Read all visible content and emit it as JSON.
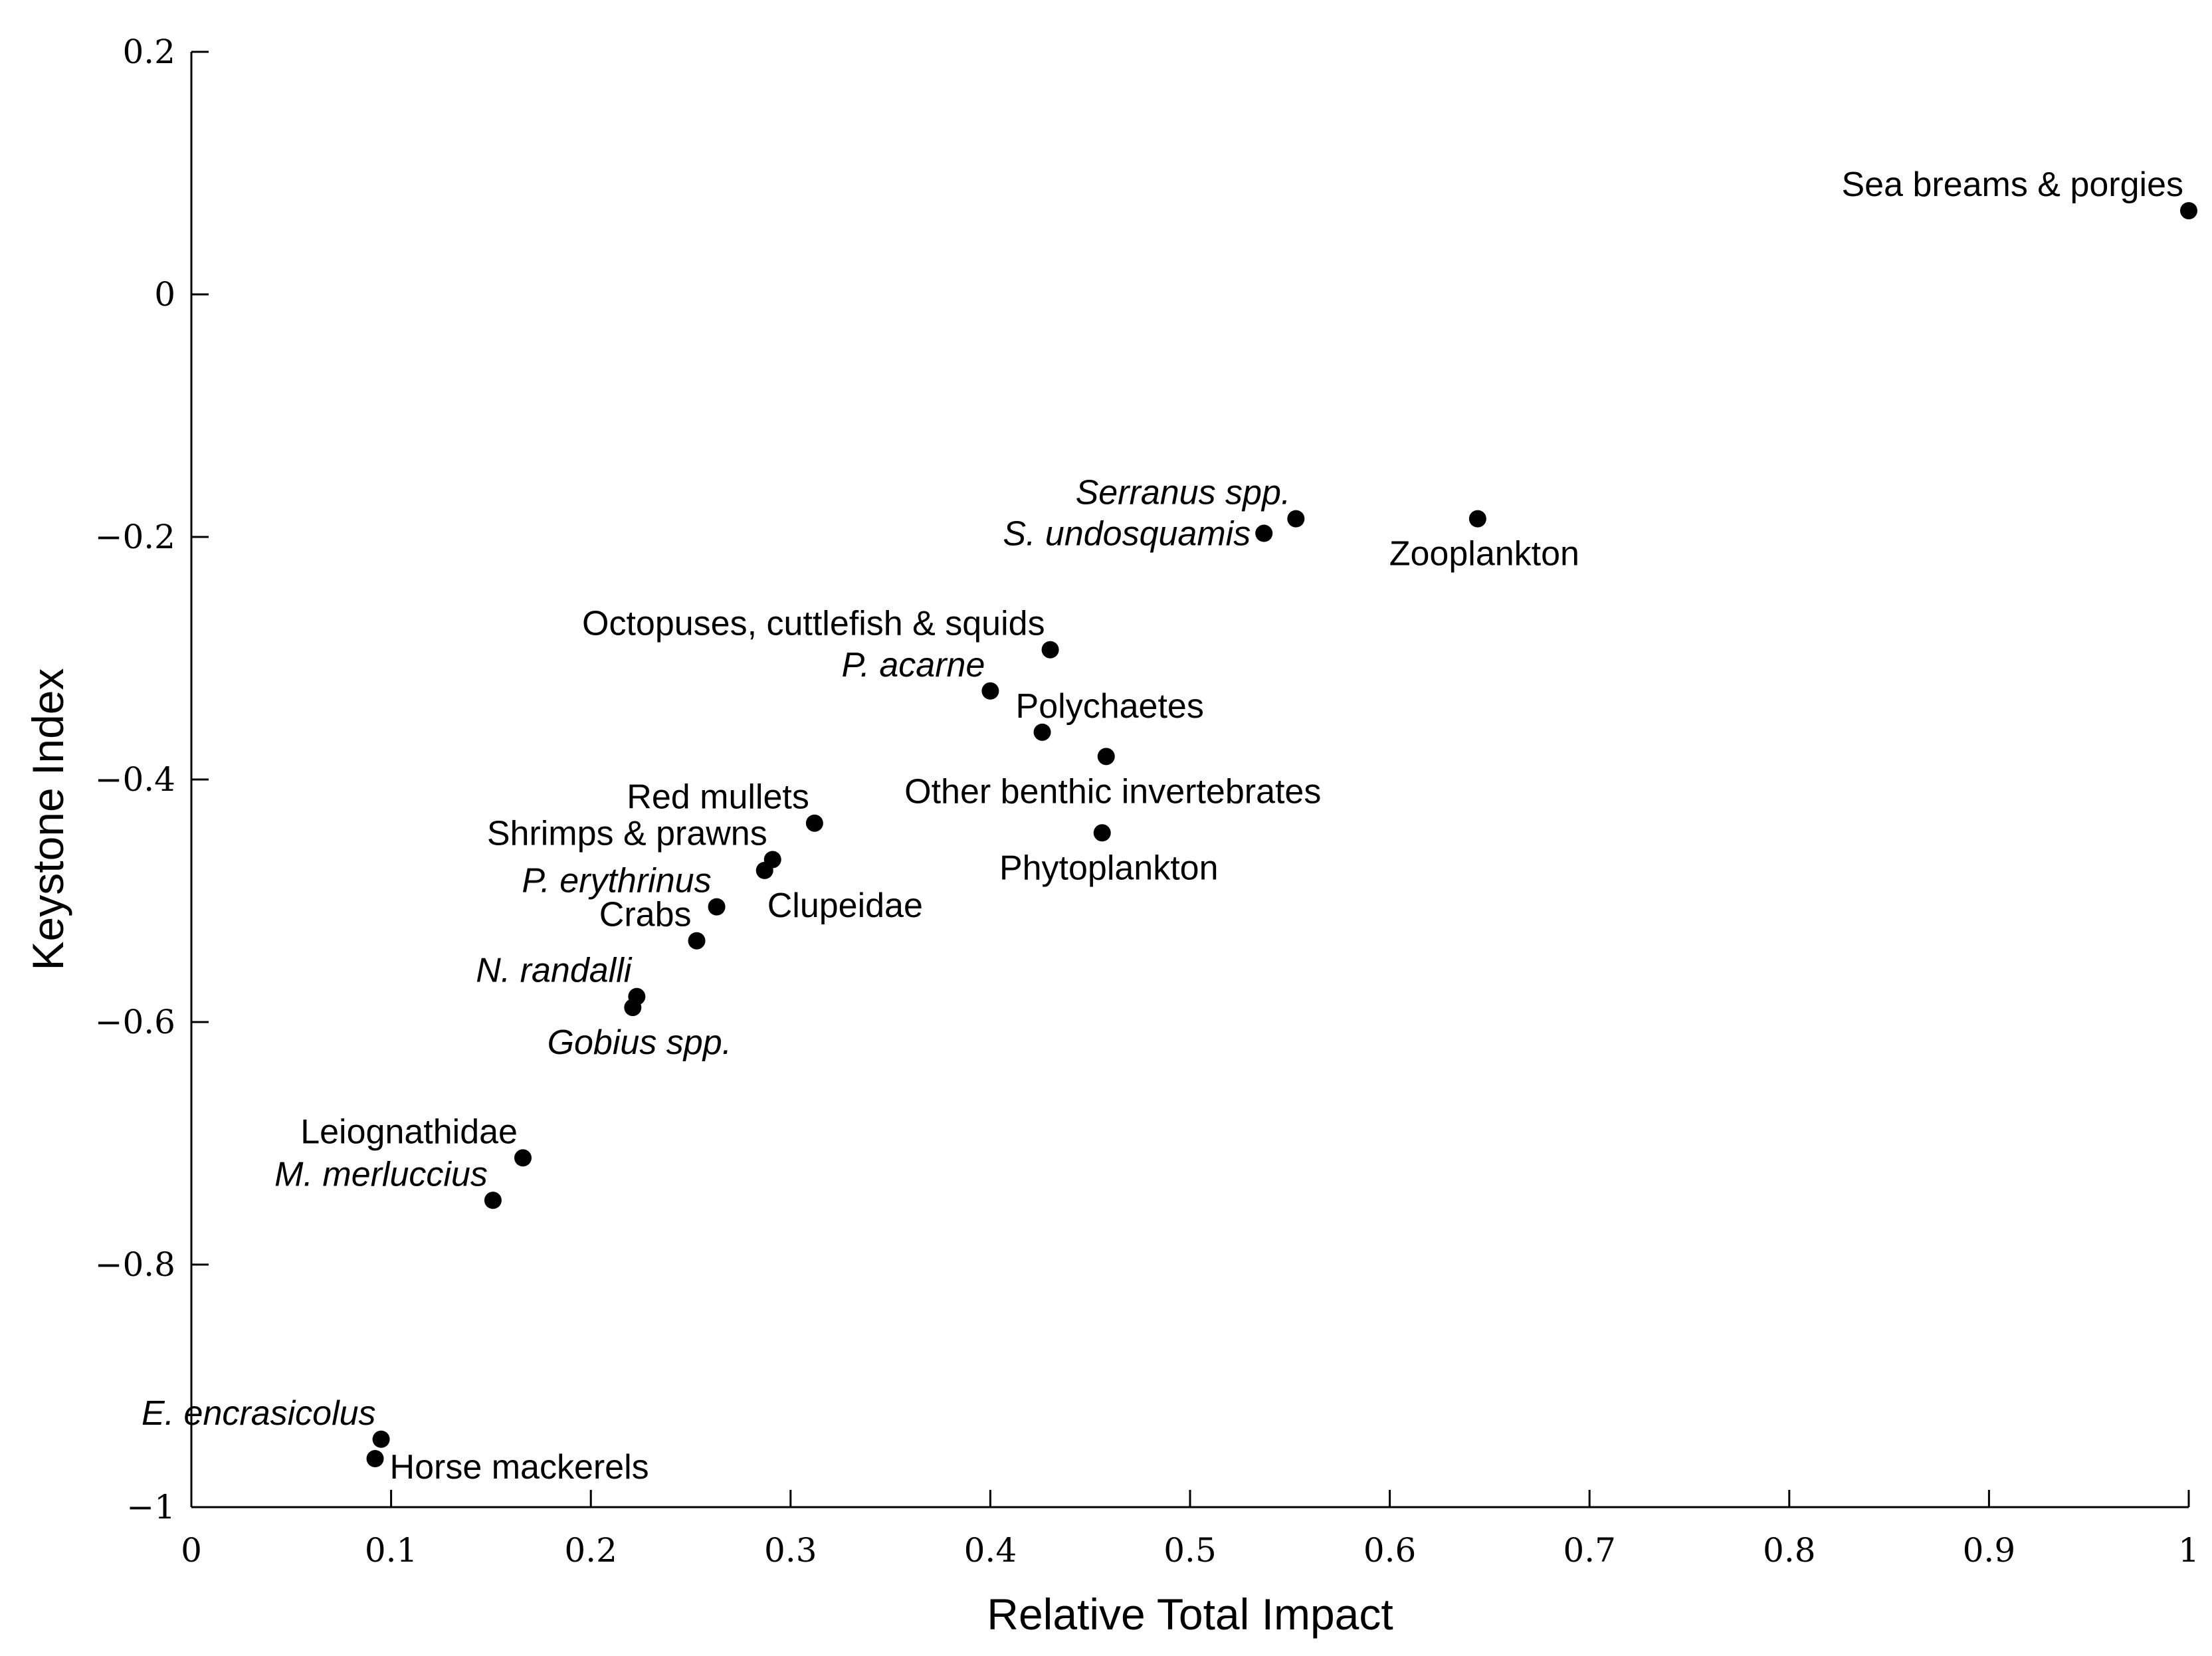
{
  "chart_data": {
    "type": "scatter",
    "title": "",
    "xlabel": "Relative Total Impact",
    "ylabel": "Keystone Index",
    "xlim": [
      0,
      1
    ],
    "ylim": [
      -1,
      0.2
    ],
    "grid": false,
    "x_ticks": [
      0,
      0.1,
      0.2,
      0.3,
      0.4,
      0.5,
      0.6,
      0.7,
      0.8,
      0.9,
      1
    ],
    "x_tick_labels": [
      "0",
      "0.1",
      "0.2",
      "0.3",
      "0.4",
      "0.5",
      "0.6",
      "0.7",
      "0.8",
      "0.9",
      "1"
    ],
    "y_ticks": [
      0.2,
      0,
      -0.2,
      -0.4,
      -0.6,
      -0.8,
      -1
    ],
    "y_tick_labels": [
      "0.2",
      "0",
      "−0.2",
      "−0.4",
      "−0.6",
      "−0.8",
      "−1"
    ],
    "points": [
      {
        "label": "Sea breams & porgies",
        "x": 1.0,
        "y": 0.069,
        "italic": false,
        "label_pos": "above-left"
      },
      {
        "label": "Zooplankton",
        "x": 0.644,
        "y": -0.185,
        "italic": false,
        "label_pos": "below"
      },
      {
        "label": "Serranus spp.",
        "x": 0.553,
        "y": -0.185,
        "italic": true,
        "label_pos": "above-left"
      },
      {
        "label": "S. undosquamis",
        "x": 0.537,
        "y": -0.197,
        "italic": true,
        "label_pos": "left"
      },
      {
        "label": "Octopuses, cuttlefish & squids",
        "x": 0.43,
        "y": -0.293,
        "italic": false,
        "label_pos": "above-left"
      },
      {
        "label": "P. acarne",
        "x": 0.4,
        "y": -0.327,
        "italic": true,
        "label_pos": "above-left"
      },
      {
        "label": "Polychaetes",
        "x": 0.426,
        "y": -0.361,
        "italic": false,
        "label_pos": "above-right"
      },
      {
        "label": "Other benthic invertebrates",
        "x": 0.458,
        "y": -0.381,
        "italic": false,
        "label_pos": "below"
      },
      {
        "label": "Phytoplankton",
        "x": 0.456,
        "y": -0.444,
        "italic": false,
        "label_pos": "below"
      },
      {
        "label": "Red mullets",
        "x": 0.312,
        "y": -0.436,
        "italic": false,
        "label_pos": "above-left"
      },
      {
        "label": "Shrimps & prawns",
        "x": 0.291,
        "y": -0.466,
        "italic": false,
        "label_pos": "above-left"
      },
      {
        "label": "Clupeidae",
        "x": 0.287,
        "y": -0.475,
        "italic": false,
        "label_pos": "below-right"
      },
      {
        "label": "P. erythrinus",
        "x": 0.263,
        "y": -0.505,
        "italic": true,
        "label_pos": "above-left"
      },
      {
        "label": "Crabs",
        "x": 0.253,
        "y": -0.533,
        "italic": false,
        "label_pos": "above-left"
      },
      {
        "label": "N. randalli",
        "x": 0.223,
        "y": -0.579,
        "italic": true,
        "label_pos": "above-left"
      },
      {
        "label": "Gobius spp.",
        "x": 0.221,
        "y": -0.588,
        "italic": true,
        "label_pos": "below"
      },
      {
        "label": "Leiognathidae",
        "x": 0.166,
        "y": -0.712,
        "italic": false,
        "label_pos": "above-left"
      },
      {
        "label": "M. merluccius",
        "x": 0.151,
        "y": -0.747,
        "italic": true,
        "label_pos": "above-left"
      },
      {
        "label": "E. encrasicolus",
        "x": 0.095,
        "y": -0.944,
        "italic": true,
        "label_pos": "above-left"
      },
      {
        "label": "Horse mackerels",
        "x": 0.092,
        "y": -0.96,
        "italic": false,
        "label_pos": "right"
      }
    ]
  }
}
